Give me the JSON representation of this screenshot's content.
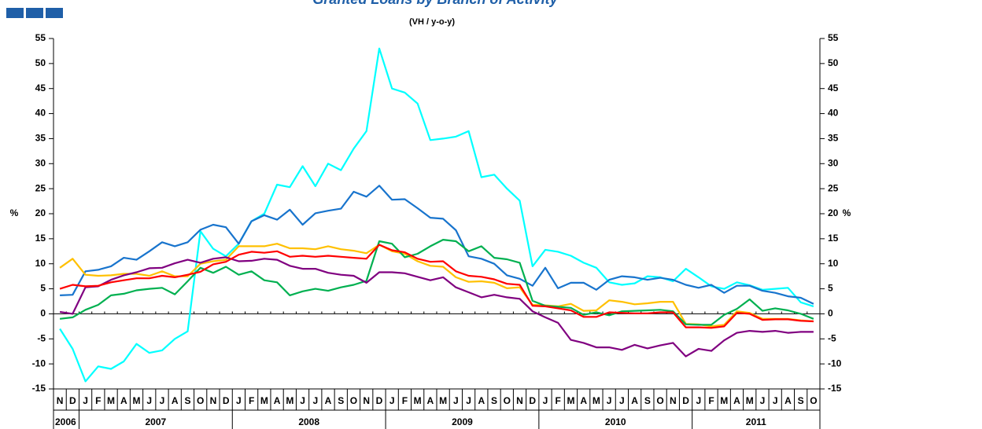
{
  "chart_data": {
    "type": "line",
    "title": "Granted Loans by Branch of Activity",
    "subtitle": "(VH / y-o-y)",
    "ylabel": "%",
    "y2label": "%",
    "categories": [
      "N",
      "D",
      "J",
      "F",
      "M",
      "A",
      "M",
      "J",
      "J",
      "A",
      "S",
      "O",
      "N",
      "D",
      "J",
      "F",
      "M",
      "A",
      "M",
      "J",
      "J",
      "A",
      "S",
      "O",
      "N",
      "D",
      "J",
      "F",
      "M",
      "A",
      "M",
      "J",
      "J",
      "A",
      "S",
      "O",
      "N",
      "D",
      "J",
      "F",
      "M",
      "A",
      "M",
      "J",
      "J",
      "A",
      "S",
      "O",
      "N",
      "D",
      "J",
      "F",
      "M",
      "A",
      "M",
      "J",
      "J",
      "A",
      "S",
      "O"
    ],
    "years": [
      "2006",
      "2007",
      "2008",
      "2009",
      "2010",
      "2011"
    ],
    "ylim": [
      -15,
      55
    ],
    "yticks": [
      -15,
      -10,
      -5,
      0,
      5,
      10,
      15,
      20,
      25,
      30,
      35,
      40,
      45,
      50,
      55
    ],
    "y2lim": [
      -15,
      55
    ],
    "y2ticks": [
      -15,
      -10,
      -5,
      0,
      5,
      10,
      15,
      20,
      25,
      30,
      35,
      40,
      45,
      50,
      55
    ],
    "series": [
      {
        "color": "#00FFFF",
        "values": [
          -3,
          -7,
          -13.5,
          -10.5,
          -11,
          -9.5,
          -6,
          -7.8,
          -7.3,
          -5,
          -3.5,
          16.5,
          13,
          11.5,
          14,
          18.5,
          20,
          25.8,
          25.3,
          29.5,
          25.5,
          30,
          28.7,
          33,
          36.5,
          53,
          45,
          44.2,
          42,
          34.7,
          35,
          35.4,
          36.5,
          27.3,
          27.8,
          25,
          22.6,
          9.5,
          12.8,
          12.4,
          11.6,
          10.2,
          9.2,
          6.3,
          5.8,
          6.1,
          7.5,
          7.3,
          6.5,
          9,
          7.3,
          5.5,
          5,
          6.3,
          5.7,
          4.8,
          5,
          5.2,
          2.3,
          1.5
        ]
      },
      {
        "color": "#1874CD",
        "values": [
          3.7,
          3.8,
          8.5,
          8.8,
          9.5,
          11.2,
          10.8,
          12.5,
          14.3,
          13.5,
          14.3,
          16.8,
          17.8,
          17.3,
          14,
          18.5,
          19.7,
          18.8,
          20.8,
          17.8,
          20.1,
          20.6,
          21,
          24.4,
          23.4,
          25.6,
          22.8,
          22.9,
          21.1,
          19.2,
          19,
          16.7,
          11.5,
          11,
          10,
          7.7,
          7,
          5.6,
          9.2,
          5.1,
          6.2,
          6.2,
          4.8,
          6.8,
          7.5,
          7.3,
          6.8,
          7.2,
          6.8,
          5.8,
          5.2,
          5.8,
          4.2,
          5.6,
          5.6,
          4.6,
          4.2,
          3.5,
          3.2,
          2
        ]
      },
      {
        "color": "#FFC000",
        "values": [
          9.2,
          11,
          7.8,
          7.6,
          7.7,
          8,
          8,
          7.6,
          8.5,
          7.5,
          7.5,
          10,
          10.5,
          10.8,
          13.5,
          13.5,
          13.5,
          14,
          13.1,
          13.1,
          12.9,
          13.5,
          12.9,
          12.6,
          12.1,
          13.8,
          12.5,
          12,
          10.5,
          9.6,
          9.4,
          7.3,
          6.4,
          6.5,
          6.2,
          5.1,
          5.3,
          1.8,
          1.7,
          1.5,
          2,
          0.6,
          0.7,
          2.7,
          2.4,
          1.9,
          2.1,
          2.4,
          2.4,
          -2,
          -2.1,
          -2.5,
          -2.2,
          0.5,
          0.2,
          -1,
          -1,
          -1,
          -1.3,
          -1.5
        ]
      },
      {
        "color": "#00B050",
        "values": [
          -1,
          -0.7,
          0.8,
          1.8,
          3.7,
          4,
          4.7,
          5,
          5.2,
          3.9,
          6.5,
          9.2,
          8.2,
          9.4,
          7.8,
          8.5,
          6.7,
          6.3,
          3.7,
          4.5,
          5,
          4.6,
          5.3,
          5.8,
          6.6,
          14.5,
          14,
          11.3,
          12,
          13.5,
          14.8,
          14.5,
          12.5,
          13.5,
          11.2,
          10.9,
          10.2,
          2.6,
          1.6,
          1.4,
          1.2,
          -0.2,
          0.3,
          -0.3,
          0.5,
          0.6,
          0.7,
          0.8,
          0.5,
          -2.1,
          -2.2,
          -2.2,
          -0.2,
          1,
          2.9,
          0.6,
          1.1,
          0.7,
          0,
          -1
        ]
      },
      {
        "color": "#800080",
        "values": [
          0.4,
          0,
          5.3,
          5.5,
          6.8,
          7.7,
          8.3,
          9.1,
          9.2,
          10.1,
          10.8,
          10.2,
          11,
          11.3,
          10.5,
          10.6,
          11,
          10.8,
          9.6,
          9,
          9,
          8.2,
          7.8,
          7.6,
          6.2,
          8.3,
          8.3,
          8.1,
          7.4,
          6.7,
          7.3,
          5.3,
          4.3,
          3.3,
          3.8,
          3.3,
          3,
          0.5,
          -0.7,
          -1.8,
          -5.2,
          -5.8,
          -6.7,
          -6.7,
          -7.2,
          -6.2,
          -6.9,
          -6.3,
          -5.8,
          -8.5,
          -7,
          -7.4,
          -5.3,
          -3.8,
          -3.4,
          -3.6,
          -3.4,
          -3.8,
          -3.6,
          -3.6
        ]
      },
      {
        "color": "#FF0000",
        "values": [
          5,
          5.8,
          5.5,
          5.6,
          6.3,
          6.7,
          7.1,
          7.1,
          7.6,
          7.3,
          7.8,
          8.4,
          9.9,
          10.4,
          11.8,
          12.4,
          12.2,
          12.5,
          11.4,
          11.6,
          11.4,
          11.6,
          11.4,
          11.2,
          11,
          13.8,
          12.7,
          12.3,
          11,
          10.4,
          10.5,
          8.5,
          7.6,
          7.4,
          6.9,
          6,
          5.8,
          1.6,
          1.5,
          1.1,
          0.7,
          -0.6,
          -0.6,
          0.3,
          0.2,
          0.1,
          0.1,
          0.3,
          0.3,
          -2.7,
          -2.7,
          -2.8,
          -2.5,
          0.2,
          0,
          -1.2,
          -1.1,
          -1.1,
          -1.4,
          -1.5
        ]
      }
    ]
  }
}
